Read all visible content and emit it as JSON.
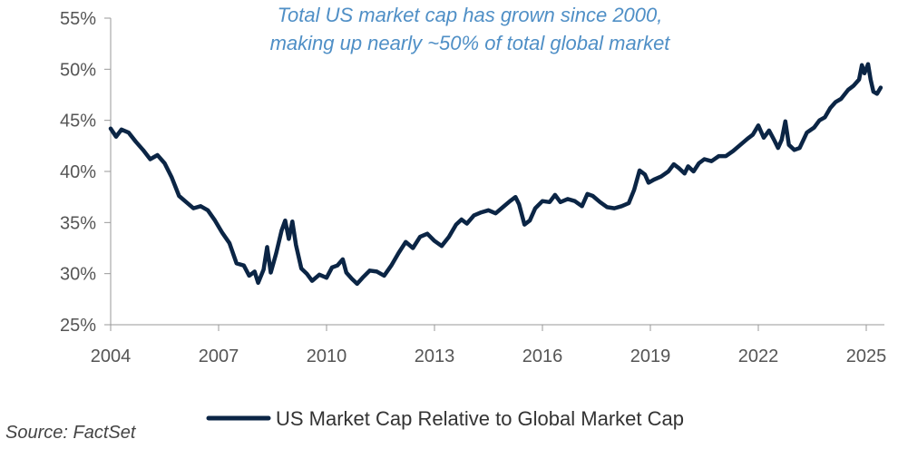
{
  "chart_data": {
    "type": "line",
    "title": "",
    "annotation": [
      "Total US market cap has grown since 2000,",
      "making up nearly ~50% of total global market"
    ],
    "xlabel": "",
    "ylabel": "",
    "x_ticks": [
      2004,
      2007,
      2010,
      2013,
      2016,
      2019,
      2022,
      2025
    ],
    "x_tick_labels": [
      "2004",
      "2007",
      "2010",
      "2013",
      "2016",
      "2019",
      "2022",
      "2025"
    ],
    "y_ticks": [
      25,
      30,
      35,
      40,
      45,
      50,
      55
    ],
    "y_tick_labels": [
      "25%",
      "30%",
      "35%",
      "40%",
      "45%",
      "50%",
      "55%"
    ],
    "xlim": [
      2004,
      2025.5
    ],
    "ylim": [
      25,
      55
    ],
    "grid": false,
    "legend_position": "bottom-center",
    "series": [
      {
        "name": "US Market Cap Relative to Global Market Cap",
        "color": "#0b2545",
        "points": [
          [
            2004.0,
            44.2
          ],
          [
            2004.15,
            43.4
          ],
          [
            2004.3,
            44.1
          ],
          [
            2004.5,
            43.8
          ],
          [
            2004.7,
            42.9
          ],
          [
            2004.9,
            42.1
          ],
          [
            2005.1,
            41.2
          ],
          [
            2005.3,
            41.6
          ],
          [
            2005.5,
            40.8
          ],
          [
            2005.7,
            39.4
          ],
          [
            2005.9,
            37.6
          ],
          [
            2006.1,
            37.0
          ],
          [
            2006.3,
            36.4
          ],
          [
            2006.5,
            36.6
          ],
          [
            2006.7,
            36.2
          ],
          [
            2006.9,
            35.2
          ],
          [
            2007.1,
            34.0
          ],
          [
            2007.3,
            33.0
          ],
          [
            2007.5,
            31.0
          ],
          [
            2007.7,
            30.8
          ],
          [
            2007.85,
            29.8
          ],
          [
            2008.0,
            30.2
          ],
          [
            2008.1,
            29.1
          ],
          [
            2008.25,
            30.4
          ],
          [
            2008.35,
            32.6
          ],
          [
            2008.45,
            30.1
          ],
          [
            2008.6,
            32.0
          ],
          [
            2008.75,
            34.2
          ],
          [
            2008.85,
            35.2
          ],
          [
            2008.95,
            33.4
          ],
          [
            2009.05,
            35.1
          ],
          [
            2009.15,
            32.8
          ],
          [
            2009.3,
            30.5
          ],
          [
            2009.45,
            30.0
          ],
          [
            2009.6,
            29.3
          ],
          [
            2009.8,
            29.9
          ],
          [
            2010.0,
            29.6
          ],
          [
            2010.15,
            30.6
          ],
          [
            2010.3,
            30.8
          ],
          [
            2010.45,
            31.4
          ],
          [
            2010.55,
            30.1
          ],
          [
            2010.7,
            29.5
          ],
          [
            2010.85,
            29.0
          ],
          [
            2011.0,
            29.6
          ],
          [
            2011.2,
            30.3
          ],
          [
            2011.4,
            30.2
          ],
          [
            2011.6,
            29.8
          ],
          [
            2011.8,
            30.8
          ],
          [
            2012.0,
            32.0
          ],
          [
            2012.2,
            33.1
          ],
          [
            2012.4,
            32.5
          ],
          [
            2012.6,
            33.6
          ],
          [
            2012.8,
            33.9
          ],
          [
            2013.0,
            33.2
          ],
          [
            2013.2,
            32.7
          ],
          [
            2013.4,
            33.6
          ],
          [
            2013.6,
            34.8
          ],
          [
            2013.75,
            35.3
          ],
          [
            2013.9,
            34.9
          ],
          [
            2014.1,
            35.7
          ],
          [
            2014.3,
            36.0
          ],
          [
            2014.5,
            36.2
          ],
          [
            2014.7,
            35.9
          ],
          [
            2014.9,
            36.5
          ],
          [
            2015.1,
            37.1
          ],
          [
            2015.25,
            37.5
          ],
          [
            2015.35,
            36.8
          ],
          [
            2015.5,
            34.8
          ],
          [
            2015.65,
            35.2
          ],
          [
            2015.8,
            36.4
          ],
          [
            2016.0,
            37.1
          ],
          [
            2016.2,
            37.0
          ],
          [
            2016.35,
            37.7
          ],
          [
            2016.5,
            37.0
          ],
          [
            2016.7,
            37.3
          ],
          [
            2016.9,
            37.1
          ],
          [
            2017.1,
            36.6
          ],
          [
            2017.25,
            37.8
          ],
          [
            2017.4,
            37.6
          ],
          [
            2017.6,
            37.0
          ],
          [
            2017.8,
            36.5
          ],
          [
            2018.0,
            36.4
          ],
          [
            2018.2,
            36.6
          ],
          [
            2018.4,
            36.9
          ],
          [
            2018.55,
            38.2
          ],
          [
            2018.7,
            40.1
          ],
          [
            2018.85,
            39.7
          ],
          [
            2018.95,
            38.9
          ],
          [
            2019.1,
            39.2
          ],
          [
            2019.3,
            39.5
          ],
          [
            2019.5,
            40.0
          ],
          [
            2019.65,
            40.7
          ],
          [
            2019.8,
            40.3
          ],
          [
            2019.95,
            39.8
          ],
          [
            2020.05,
            40.5
          ],
          [
            2020.2,
            40.0
          ],
          [
            2020.35,
            40.8
          ],
          [
            2020.5,
            41.2
          ],
          [
            2020.7,
            41.0
          ],
          [
            2020.9,
            41.5
          ],
          [
            2021.1,
            41.5
          ],
          [
            2021.3,
            42.0
          ],
          [
            2021.5,
            42.6
          ],
          [
            2021.7,
            43.2
          ],
          [
            2021.85,
            43.6
          ],
          [
            2022.0,
            44.5
          ],
          [
            2022.15,
            43.3
          ],
          [
            2022.3,
            44.0
          ],
          [
            2022.45,
            43.0
          ],
          [
            2022.55,
            42.3
          ],
          [
            2022.65,
            43.1
          ],
          [
            2022.75,
            44.9
          ],
          [
            2022.85,
            42.6
          ],
          [
            2023.0,
            42.1
          ],
          [
            2023.15,
            42.3
          ],
          [
            2023.35,
            43.8
          ],
          [
            2023.55,
            44.3
          ],
          [
            2023.7,
            45.0
          ],
          [
            2023.85,
            45.3
          ],
          [
            2024.0,
            46.2
          ],
          [
            2024.15,
            46.8
          ],
          [
            2024.3,
            47.1
          ],
          [
            2024.5,
            48.0
          ],
          [
            2024.65,
            48.4
          ],
          [
            2024.8,
            49.0
          ],
          [
            2024.88,
            50.4
          ],
          [
            2024.95,
            49.6
          ],
          [
            2025.05,
            50.5
          ],
          [
            2025.12,
            49.0
          ],
          [
            2025.2,
            47.8
          ],
          [
            2025.3,
            47.6
          ],
          [
            2025.4,
            48.2
          ]
        ]
      }
    ]
  },
  "source_text": "Source: FactSet"
}
